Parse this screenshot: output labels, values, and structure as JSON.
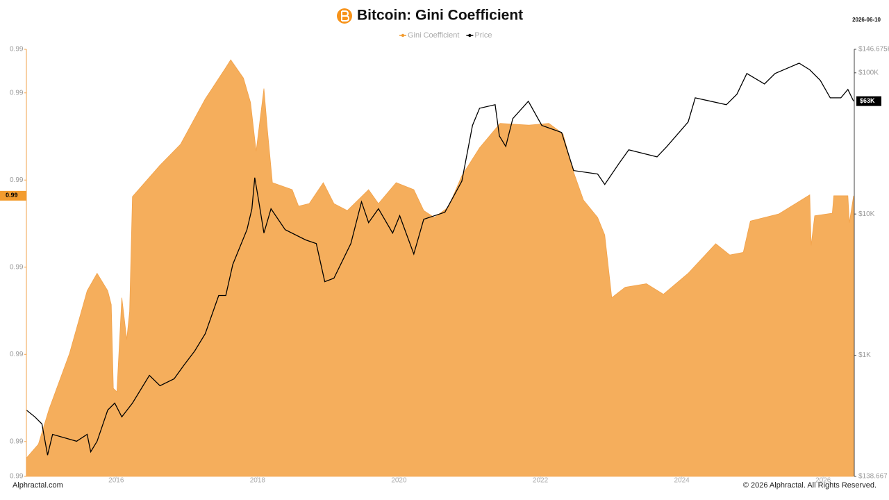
{
  "chart_data": {
    "type": "area-line",
    "title": "Bitcoin: Gini Coefficient",
    "date": "2026-06-10",
    "watermark": "Alphractal",
    "source": "Alphractal.com",
    "copyright": "© 2026 Alphractal. All Rights Reserved.",
    "legend": "top",
    "y2log": true,
    "xlim": [
      2014.73,
      2026.44
    ],
    "xticks": [
      2016,
      2018,
      2020,
      2022,
      2024,
      2026
    ],
    "ylim": [
      0.99006,
      0.99055
    ],
    "yticks": [
      {
        "value": 0.99006,
        "label": "0.99"
      },
      {
        "value": 0.9901,
        "label": "0.99"
      },
      {
        "value": 0.9902,
        "label": "0.99"
      },
      {
        "value": 0.9903,
        "label": "0.99"
      },
      {
        "value": 0.9904,
        "label": "0.99"
      },
      {
        "value": 0.9905,
        "label": "0.99"
      },
      {
        "value": 0.99055,
        "label": "0.99"
      }
    ],
    "y2lim": [
      138.667,
      146675
    ],
    "y2ticks": [
      {
        "value": 138.667,
        "label": "$138.667"
      },
      {
        "value": 1000,
        "label": "$1K"
      },
      {
        "value": 10000,
        "label": "$10K"
      },
      {
        "value": 100000,
        "label": "$100K"
      },
      {
        "value": 146675,
        "label": "$146.675K"
      }
    ],
    "series": [
      {
        "name": "Gini Coefficient",
        "color": "#f5ae5c",
        "axis": "y",
        "x": [
          2014.73,
          2014.9,
          2015.05,
          2015.34,
          2015.59,
          2015.73,
          2015.88,
          2015.93,
          2015.96,
          2016.01,
          2016.08,
          2016.15,
          2016.19,
          2016.23,
          2016.62,
          2016.91,
          2017.26,
          2017.55,
          2017.62,
          2017.8,
          2017.9,
          2017.98,
          2018.09,
          2018.14,
          2018.21,
          2018.49,
          2018.58,
          2018.73,
          2018.93,
          2019.08,
          2019.27,
          2019.57,
          2019.71,
          2019.96,
          2020.21,
          2020.35,
          2020.5,
          2020.7,
          2020.89,
          2021.14,
          2021.43,
          2021.83,
          2022.12,
          2022.32,
          2022.47,
          2022.61,
          2022.81,
          2022.91,
          2023.01,
          2023.2,
          2023.5,
          2023.74,
          2024.09,
          2024.48,
          2024.68,
          2024.87,
          2024.97,
          2025.37,
          2025.81,
          2025.83,
          2025.88,
          2026.13,
          2026.15,
          2026.35,
          2026.37,
          2026.43
        ],
        "values": [
          0.990081,
          0.990097,
          0.990137,
          0.990201,
          0.990273,
          0.990293,
          0.990273,
          0.990257,
          0.990161,
          0.990157,
          0.990265,
          0.990217,
          0.990249,
          0.990381,
          0.990417,
          0.990441,
          0.990493,
          0.990529,
          0.990538,
          0.990517,
          0.990489,
          0.990433,
          0.990505,
          0.990457,
          0.990397,
          0.990389,
          0.99037,
          0.990373,
          0.990397,
          0.990373,
          0.990365,
          0.990389,
          0.990373,
          0.990397,
          0.990389,
          0.990365,
          0.990357,
          0.990369,
          0.990405,
          0.990437,
          0.990465,
          0.990463,
          0.990465,
          0.990453,
          0.990409,
          0.990377,
          0.990357,
          0.990337,
          0.990265,
          0.990277,
          0.990281,
          0.990269,
          0.990293,
          0.990327,
          0.990314,
          0.990317,
          0.990353,
          0.990361,
          0.990383,
          0.990325,
          0.990359,
          0.990362,
          0.990382,
          0.990382,
          0.990351,
          0.990382
        ],
        "value_labels": [
          null,
          null,
          null,
          null,
          null,
          null,
          null,
          null,
          null,
          null,
          null,
          null,
          null,
          null,
          null,
          null,
          null,
          null,
          null,
          null,
          null,
          null,
          null,
          null,
          null,
          null,
          null,
          null,
          null,
          null,
          null,
          null,
          null,
          null,
          null,
          null,
          null,
          null,
          null,
          null,
          null,
          null,
          null,
          null,
          null,
          null,
          null,
          null,
          null,
          null,
          null,
          null,
          null,
          null,
          null,
          null,
          null,
          null,
          null,
          null,
          null,
          null,
          null,
          null,
          null,
          "0.99"
        ]
      },
      {
        "name": "Price",
        "color": "#000000",
        "axis": "y2",
        "x": [
          2014.73,
          2014.85,
          2014.95,
          2015.03,
          2015.1,
          2015.44,
          2015.59,
          2015.64,
          2015.73,
          2015.88,
          2015.98,
          2016.08,
          2016.23,
          2016.47,
          2016.62,
          2016.82,
          2016.96,
          2017.11,
          2017.26,
          2017.45,
          2017.55,
          2017.65,
          2017.85,
          2017.92,
          2017.96,
          2018.01,
          2018.09,
          2018.19,
          2018.39,
          2018.68,
          2018.83,
          2018.95,
          2019.08,
          2019.32,
          2019.47,
          2019.57,
          2019.71,
          2019.91,
          2020.01,
          2020.21,
          2020.35,
          2020.65,
          2020.89,
          2021.04,
          2021.14,
          2021.36,
          2021.42,
          2021.51,
          2021.61,
          2021.83,
          2022.02,
          2022.3,
          2022.47,
          2022.81,
          2022.91,
          2023.11,
          2023.25,
          2023.65,
          2023.79,
          2024.09,
          2024.19,
          2024.63,
          2024.78,
          2024.92,
          2025.17,
          2025.32,
          2025.66,
          2025.81,
          2025.96,
          2026.1,
          2026.25,
          2026.35,
          2026.43
        ],
        "values": [
          409,
          366,
          326,
          196,
          275,
          246,
          275,
          207,
          246,
          409,
          458,
          366,
          458,
          720,
          608,
          681,
          853,
          1070,
          1420,
          2650,
          2650,
          4400,
          7750,
          10900,
          18100,
          12900,
          7330,
          10900,
          7750,
          6550,
          6180,
          3320,
          3510,
          6180,
          12200,
          8690,
          10900,
          7330,
          9730,
          5210,
          9180,
          10300,
          17100,
          42400,
          56100,
          59400,
          35700,
          30100,
          47400,
          62900,
          42400,
          37800,
          20300,
          19200,
          16200,
          22700,
          28500,
          25400,
          30100,
          44800,
          66500,
          59400,
          70500,
          98900,
          83400,
          98900,
          117000,
          105000,
          88300,
          66500,
          66500,
          76200,
          63000
        ],
        "value_labels": [
          null,
          null,
          null,
          null,
          null,
          null,
          null,
          null,
          null,
          null,
          null,
          null,
          null,
          null,
          null,
          null,
          null,
          null,
          null,
          null,
          null,
          null,
          null,
          null,
          null,
          null,
          null,
          null,
          null,
          null,
          null,
          null,
          null,
          null,
          null,
          null,
          null,
          null,
          null,
          null,
          null,
          null,
          null,
          null,
          null,
          null,
          null,
          null,
          null,
          null,
          null,
          null,
          null,
          null,
          null,
          null,
          null,
          null,
          null,
          null,
          null,
          null,
          null,
          null,
          null,
          null,
          null,
          null,
          null,
          null,
          null,
          null,
          "$63K"
        ]
      }
    ]
  }
}
